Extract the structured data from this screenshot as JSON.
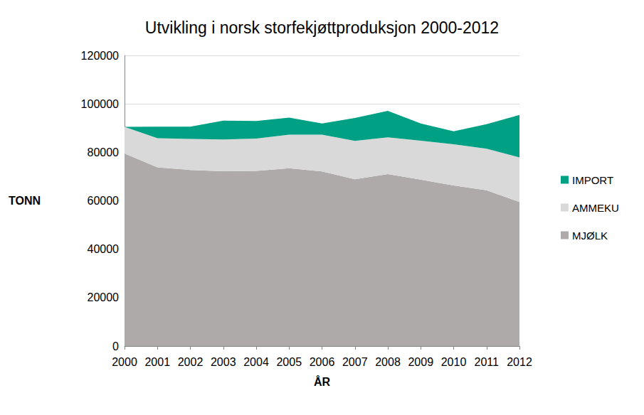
{
  "chart_data": {
    "type": "area",
    "title": "Utvikling i norsk storfekjøttproduksjon 2000-2012",
    "x_label": "ÅR",
    "y_label": "TONN",
    "categories": [
      "2000",
      "2001",
      "2002",
      "2003",
      "2004",
      "2005",
      "2006",
      "2007",
      "2008",
      "2009",
      "2010",
      "2011",
      "2012"
    ],
    "series": [
      {
        "name": "MJØLK",
        "color": "#aeaaaa",
        "values": [
          79500,
          73800,
          72700,
          72200,
          72300,
          73400,
          72100,
          68900,
          71000,
          68700,
          66300,
          64300,
          59500
        ]
      },
      {
        "name": "AMMEKU",
        "color": "#d9d9d9",
        "values": [
          11000,
          12000,
          12800,
          13100,
          13400,
          13900,
          15200,
          15800,
          15200,
          16100,
          17000,
          17200,
          18400
        ]
      },
      {
        "name": "IMPORT",
        "color": "#00a084",
        "values": [
          0,
          4800,
          5100,
          7800,
          7200,
          7000,
          4600,
          9500,
          10900,
          7100,
          5400,
          10100,
          17500
        ]
      }
    ],
    "ylim": [
      0,
      120000
    ],
    "yticks": [
      0,
      20000,
      40000,
      60000,
      80000,
      100000,
      120000
    ],
    "stacked": true,
    "grid": true,
    "legend": "right"
  }
}
